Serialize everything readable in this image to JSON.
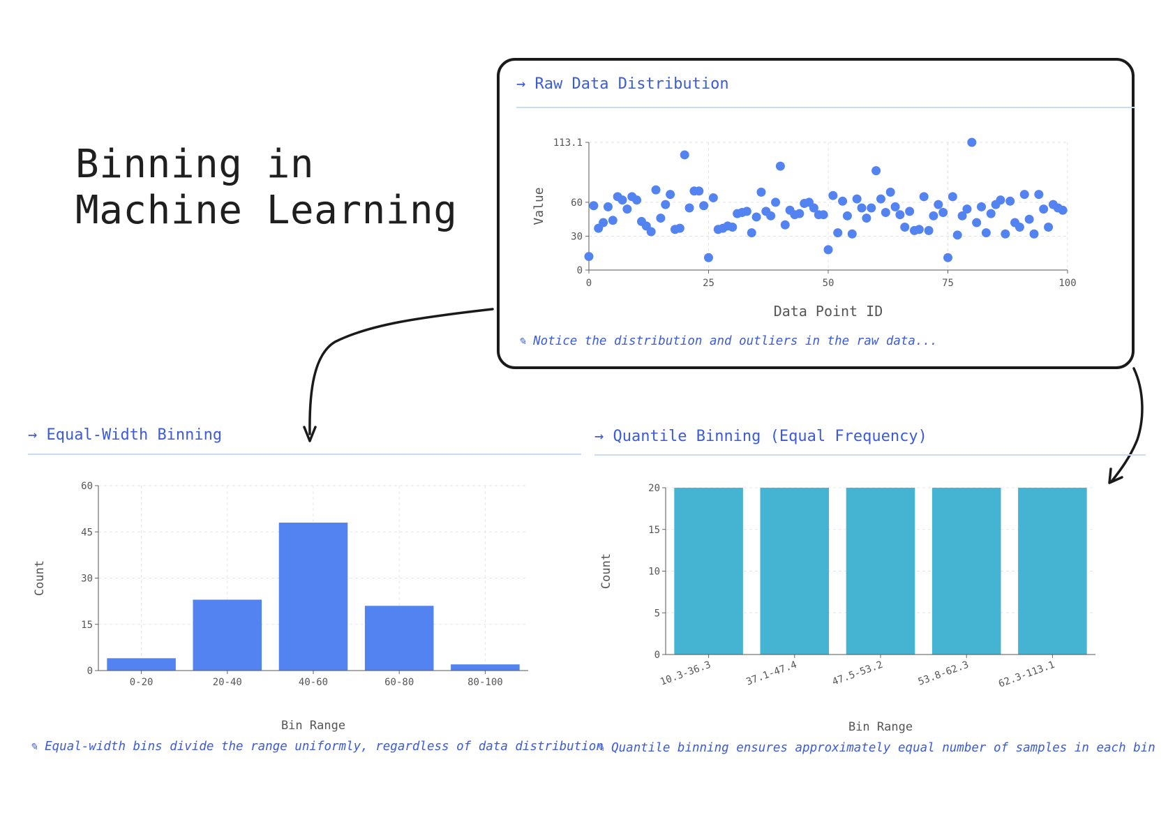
{
  "title": "Binning in\nMachine Learning",
  "colors": {
    "accent": "#3b5bdb",
    "scatter": "#5383f1",
    "equal_bar": "#5383f1",
    "quantile_bar": "#45b4d3",
    "rule": "#c9dcf7",
    "arrow_icon": "→",
    "note_icon": "✎"
  },
  "raw_panel": {
    "title": "Raw Data Distribution",
    "note": "Notice the distribution and outliers in the raw data..."
  },
  "equal_panel": {
    "title": "Equal-Width Binning",
    "note": "Equal-width bins divide the range uniformly, regardless of data distribution"
  },
  "quantile_panel": {
    "title": "Quantile Binning (Equal Frequency)",
    "note": "Quantile binning ensures approximately equal number of samples in each bin"
  },
  "chart_data": [
    {
      "type": "scatter",
      "xlabel": "Data Point ID",
      "ylabel": "Value",
      "xlim": [
        0,
        100
      ],
      "ylim": [
        0,
        113.1
      ],
      "xticks": [
        0,
        25,
        50,
        75,
        100
      ],
      "yticks": [
        0,
        30,
        60,
        113.1
      ],
      "ytick_labels": [
        "0",
        "30",
        "60",
        "113.1"
      ],
      "grid": true,
      "x": [
        0,
        1,
        2,
        3,
        4,
        5,
        6,
        7,
        8,
        9,
        10,
        11,
        12,
        13,
        14,
        15,
        16,
        17,
        18,
        19,
        20,
        21,
        22,
        23,
        24,
        25,
        26,
        27,
        28,
        29,
        30,
        31,
        32,
        33,
        34,
        35,
        36,
        37,
        38,
        39,
        40,
        41,
        42,
        43,
        44,
        45,
        46,
        47,
        48,
        49,
        50,
        51,
        52,
        53,
        54,
        55,
        56,
        57,
        58,
        59,
        60,
        61,
        62,
        63,
        64,
        65,
        66,
        67,
        68,
        69,
        70,
        71,
        72,
        73,
        74,
        75,
        76,
        77,
        78,
        79,
        80,
        81,
        82,
        83,
        84,
        85,
        86,
        87,
        88,
        89,
        90,
        91,
        92,
        93,
        94,
        95,
        96,
        97,
        98,
        99
      ],
      "y": [
        12,
        57,
        37,
        42,
        56,
        44,
        65,
        62,
        54,
        65,
        62,
        43,
        39,
        34,
        71,
        46,
        58,
        67,
        36,
        37,
        102,
        55,
        70,
        70,
        57,
        11,
        64,
        36,
        37,
        39,
        38,
        50,
        51,
        52,
        33,
        47,
        69,
        52,
        48,
        60,
        92,
        40,
        53,
        49,
        50,
        59,
        60,
        55,
        49,
        49,
        18,
        66,
        33,
        61,
        48,
        32,
        63,
        55,
        46,
        55,
        88,
        63,
        51,
        69,
        56,
        49,
        38,
        52,
        35,
        36,
        65,
        35,
        48,
        58,
        51,
        11,
        65,
        31,
        48,
        54,
        113.1,
        42,
        56,
        33,
        50,
        58,
        62,
        32,
        61,
        42,
        38,
        67,
        45,
        32,
        67,
        54,
        38,
        58,
        55,
        53
      ]
    },
    {
      "type": "bar",
      "xlabel": "Bin Range",
      "ylabel": "Count",
      "ylim": [
        0,
        60
      ],
      "yticks": [
        0,
        15,
        30,
        45,
        60
      ],
      "grid": true,
      "categories": [
        "0-20",
        "20-40",
        "40-60",
        "60-80",
        "80-100"
      ],
      "values": [
        4,
        23,
        48,
        21,
        2
      ]
    },
    {
      "type": "bar",
      "xlabel": "Bin Range",
      "ylabel": "Count",
      "ylim": [
        0,
        20
      ],
      "yticks": [
        0,
        5,
        10,
        15,
        20
      ],
      "grid": true,
      "categories": [
        "10.3-36.3",
        "37.1-47.4",
        "47.5-53.2",
        "53.8-62.3",
        "62.3-113.1"
      ],
      "values": [
        20,
        20,
        20,
        20,
        20
      ]
    }
  ]
}
